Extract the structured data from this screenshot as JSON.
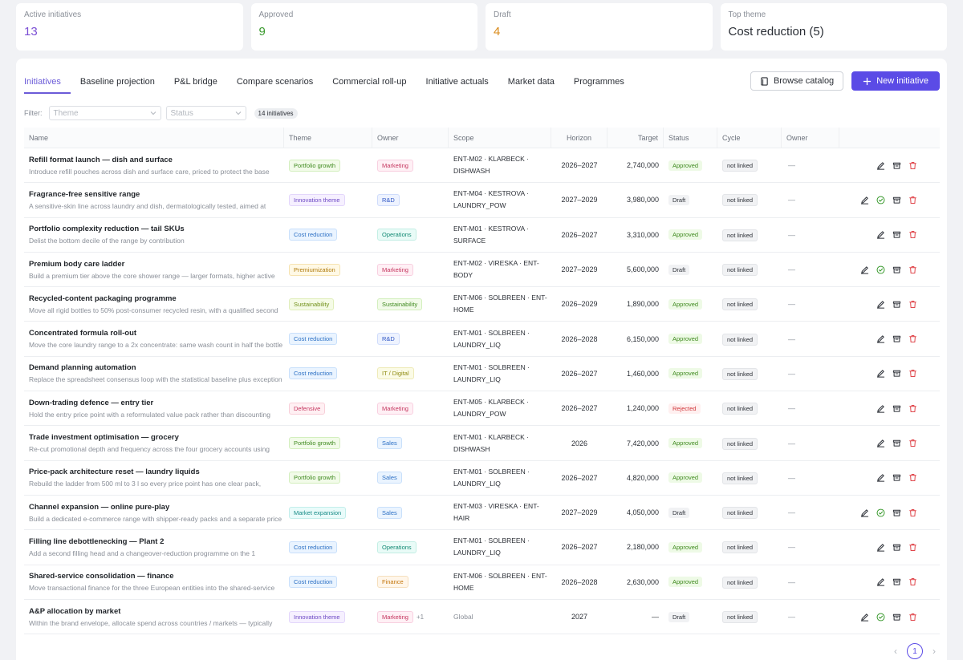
{
  "stats": [
    {
      "label": "Active initiatives",
      "value": "13",
      "color": "#7b4fd4"
    },
    {
      "label": "Approved",
      "value": "9",
      "color": "#3a9a2e"
    },
    {
      "label": "Draft",
      "value": "4",
      "color": "#d98a1a"
    },
    {
      "label": "Top theme",
      "value": "Cost reduction (5)",
      "color": "#2b2f36"
    }
  ],
  "tabs": [
    "Initiatives",
    "Baseline projection",
    "P&L bridge",
    "Compare scenarios",
    "Commercial roll-up",
    "Initiative actuals",
    "Market data",
    "Programmes"
  ],
  "toolbar": {
    "browse_label": "Browse catalog",
    "new_label": "New initiative"
  },
  "filters": {
    "label": "Filter:",
    "theme_placeholder": "Theme",
    "status_placeholder": "Status",
    "count_badge": "14 initiatives"
  },
  "columns": [
    "Name",
    "Theme",
    "Owner",
    "Scope",
    "Horizon",
    "Target",
    "Status",
    "Cycle",
    "Owner"
  ],
  "theme_colors": {
    "Portfolio growth": {
      "bg": "#f2fbe9",
      "fg": "#3f8a1f",
      "border": "#d3efbe"
    },
    "Innovation theme": {
      "bg": "#f6f0ff",
      "fg": "#6b47c4",
      "border": "#e3d6fb"
    },
    "Cost reduction": {
      "bg": "#eaf4ff",
      "fg": "#2b6fc4",
      "border": "#c9e0fb"
    },
    "Premiumization": {
      "bg": "#fff9e6",
      "fg": "#b07a0c",
      "border": "#f6e3b0"
    },
    "Sustainability": {
      "bg": "#f5fbe6",
      "fg": "#6f8f16",
      "border": "#e0eebb"
    },
    "Defensive": {
      "bg": "#fff0f3",
      "fg": "#c5365f",
      "border": "#f8cfd9"
    },
    "Market expansion": {
      "bg": "#e9fbfa",
      "fg": "#168a86",
      "border": "#c3eeeb"
    }
  },
  "owner_colors": {
    "Marketing": {
      "bg": "#fff0f5",
      "fg": "#c5365f",
      "border": "#f8cfe0"
    },
    "R&D": {
      "bg": "#eef3ff",
      "fg": "#2e55c4",
      "border": "#cfdcfb"
    },
    "Operations": {
      "bg": "#e9fbf7",
      "fg": "#138a74",
      "border": "#c3eee4"
    },
    "Sustainability": {
      "bg": "#f2fbe9",
      "fg": "#3f8a1f",
      "border": "#d3efbe"
    },
    "IT / Digital": {
      "bg": "#fbfbe6",
      "fg": "#8f8a10",
      "border": "#eeeab8"
    },
    "Sales": {
      "bg": "#eaf4ff",
      "fg": "#2b6fc4",
      "border": "#c9e0fb"
    },
    "Finance": {
      "bg": "#fff6ea",
      "fg": "#c4770e",
      "border": "#f6dfbd"
    }
  },
  "status_colors": {
    "Approved": {
      "bg": "#eefae6",
      "fg": "#3f8a1f"
    },
    "Draft": {
      "bg": "#f1f2f4",
      "fg": "#2b2f36"
    },
    "Rejected": {
      "bg": "#fff0f0",
      "fg": "#d0363a"
    }
  },
  "rows": [
    {
      "name": "Refill format launch — dish and surface",
      "desc": "Introduce refill pouches across dish and surface care, priced to protect the base",
      "theme": "Portfolio growth",
      "owner": "Marketing",
      "scope1": "ENT-M02 · KLARBECK ·",
      "scope2": "DISHWASH",
      "horizon": "2026–2027",
      "target": "2,740,000",
      "status": "Approved",
      "cycle": "not linked",
      "owner2": "—",
      "approve": false
    },
    {
      "name": "Fragrance-free sensitive range",
      "desc": "A sensitive-skin line across laundry and dish, dermatologically tested, aimed at",
      "theme": "Innovation theme",
      "owner": "R&D",
      "scope1": "ENT-M04 · KESTROVA ·",
      "scope2": "LAUNDRY_POW",
      "horizon": "2027–2029",
      "target": "3,980,000",
      "status": "Draft",
      "cycle": "not linked",
      "owner2": "—",
      "approve": true
    },
    {
      "name": "Portfolio complexity reduction — tail SKUs",
      "desc": "Delist the bottom decile of the range by contribution",
      "theme": "Cost reduction",
      "owner": "Operations",
      "scope1": "ENT-M01 · KESTROVA ·",
      "scope2": "SURFACE",
      "horizon": "2026–2027",
      "target": "3,310,000",
      "status": "Approved",
      "cycle": "not linked",
      "owner2": "—",
      "approve": false
    },
    {
      "name": "Premium body care ladder",
      "desc": "Build a premium tier above the core shower range — larger formats, higher active",
      "theme": "Premiumization",
      "owner": "Marketing",
      "scope1": "ENT-M02 · VIRESKA · ENT-BODY",
      "scope2": "",
      "horizon": "2027–2029",
      "target": "5,600,000",
      "status": "Draft",
      "cycle": "not linked",
      "owner2": "—",
      "approve": true
    },
    {
      "name": "Recycled-content packaging programme",
      "desc": "Move all rigid bottles to 50% post-consumer recycled resin, with a qualified second",
      "theme": "Sustainability",
      "owner": "Sustainability",
      "scope1": "ENT-M06 · SOLBREEN · ENT-",
      "scope2": "HOME",
      "horizon": "2026–2029",
      "target": "1,890,000",
      "status": "Approved",
      "cycle": "not linked",
      "owner2": "—",
      "approve": false
    },
    {
      "name": "Concentrated formula roll-out",
      "desc": "Move the core laundry range to a 2x concentrate: same wash count in half the bottle",
      "theme": "Cost reduction",
      "owner": "R&D",
      "scope1": "ENT-M01 · SOLBREEN ·",
      "scope2": "LAUNDRY_LIQ",
      "horizon": "2026–2028",
      "target": "6,150,000",
      "status": "Approved",
      "cycle": "not linked",
      "owner2": "—",
      "approve": false
    },
    {
      "name": "Demand planning automation",
      "desc": "Replace the spreadsheet consensus loop with the statistical baseline plus exception",
      "theme": "Cost reduction",
      "owner": "IT / Digital",
      "scope1": "ENT-M01 · SOLBREEN ·",
      "scope2": "LAUNDRY_LIQ",
      "horizon": "2026–2027",
      "target": "1,460,000",
      "status": "Approved",
      "cycle": "not linked",
      "owner2": "—",
      "approve": false
    },
    {
      "name": "Down-trading defence — entry tier",
      "desc": "Hold the entry price point with a reformulated value pack rather than discounting",
      "theme": "Defensive",
      "owner": "Marketing",
      "scope1": "ENT-M05 · KLARBECK ·",
      "scope2": "LAUNDRY_POW",
      "horizon": "2026–2027",
      "target": "1,240,000",
      "status": "Rejected",
      "cycle": "not linked",
      "owner2": "—",
      "approve": false
    },
    {
      "name": "Trade investment optimisation — grocery",
      "desc": "Re-cut promotional depth and frequency across the four grocery accounts using",
      "theme": "Portfolio growth",
      "owner": "Sales",
      "scope1": "ENT-M01 · KLARBECK ·",
      "scope2": "DISHWASH",
      "horizon": "2026",
      "target": "7,420,000",
      "status": "Approved",
      "cycle": "not linked",
      "owner2": "—",
      "approve": false
    },
    {
      "name": "Price-pack architecture reset — laundry liquids",
      "desc": "Rebuild the ladder from 500 ml to 3 l so every price point has one clear pack,",
      "theme": "Portfolio growth",
      "owner": "Sales",
      "scope1": "ENT-M01 · SOLBREEN ·",
      "scope2": "LAUNDRY_LIQ",
      "horizon": "2026–2027",
      "target": "4,820,000",
      "status": "Approved",
      "cycle": "not linked",
      "owner2": "—",
      "approve": false
    },
    {
      "name": "Channel expansion — online pure-play",
      "desc": "Build a dedicated e-commerce range with shipper-ready packs and a separate price",
      "theme": "Market expansion",
      "owner": "Sales",
      "scope1": "ENT-M03 · VIRESKA · ENT-HAIR",
      "scope2": "",
      "horizon": "2027–2029",
      "target": "4,050,000",
      "status": "Draft",
      "cycle": "not linked",
      "owner2": "—",
      "approve": true
    },
    {
      "name": "Filling line debottlenecking — Plant 2",
      "desc": "Add a second filling head and a changeover-reduction programme on the 1",
      "theme": "Cost reduction",
      "owner": "Operations",
      "scope1": "ENT-M01 · SOLBREEN ·",
      "scope2": "LAUNDRY_LIQ",
      "horizon": "2026–2027",
      "target": "2,180,000",
      "status": "Approved",
      "cycle": "not linked",
      "owner2": "—",
      "approve": false
    },
    {
      "name": "Shared-service consolidation — finance",
      "desc": "Move transactional finance for the three European entities into the shared-service",
      "theme": "Cost reduction",
      "owner": "Finance",
      "scope1": "ENT-M06 · SOLBREEN · ENT-",
      "scope2": "HOME",
      "horizon": "2026–2028",
      "target": "2,630,000",
      "status": "Approved",
      "cycle": "not linked",
      "owner2": "—",
      "approve": false
    },
    {
      "name": "A&P allocation by market",
      "desc": "Within the brand envelope, allocate spend across countries / markets — typically",
      "theme": "Innovation theme",
      "owner": "Marketing",
      "owner_more": "+1",
      "scope1": "Global",
      "scope2": "",
      "scope_muted": true,
      "horizon": "2027",
      "target": "—",
      "status": "Draft",
      "cycle": "not linked",
      "owner2": "—",
      "approve": true
    }
  ],
  "pager": {
    "current": "1",
    "prev": "‹",
    "next": "›"
  }
}
